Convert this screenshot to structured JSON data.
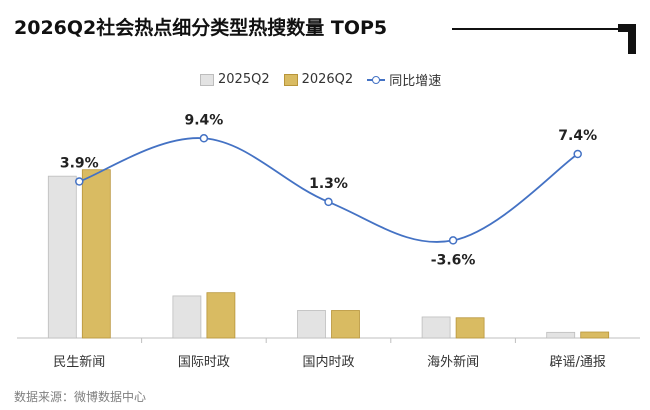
{
  "title": "2026Q2社会热点细分类型热搜数量 TOP5",
  "source": "数据来源：微博数据中心",
  "colors": {
    "series_2025": "#E3E3E3",
    "series_2025_border": "#BDBDBD",
    "series_2026": "#D9BB62",
    "series_2026_border": "#B8953A",
    "growth_line": "#4472C4",
    "axis": "#BFBFBF"
  },
  "chart_data": {
    "type": "bar",
    "categories": [
      "民生新闻",
      "国际时政",
      "国内时政",
      "海外新闻",
      "辟谣/通报"
    ],
    "series": [
      {
        "name": "2025Q2",
        "values": [
          100,
          26,
          17,
          13,
          3.5
        ]
      },
      {
        "name": "2026Q2",
        "values": [
          104,
          28,
          17,
          12.5,
          3.7
        ]
      }
    ],
    "line_series": {
      "name": "同比增速",
      "values": [
        3.9,
        9.4,
        1.3,
        -3.6,
        7.4
      ],
      "labels": [
        "3.9%",
        "9.4%",
        "1.3%",
        "-3.6%",
        "7.4%"
      ]
    },
    "ylim": [
      0,
      110
    ],
    "line_ylim": [
      -15,
      13
    ],
    "legend": "top-center",
    "grid": false
  }
}
